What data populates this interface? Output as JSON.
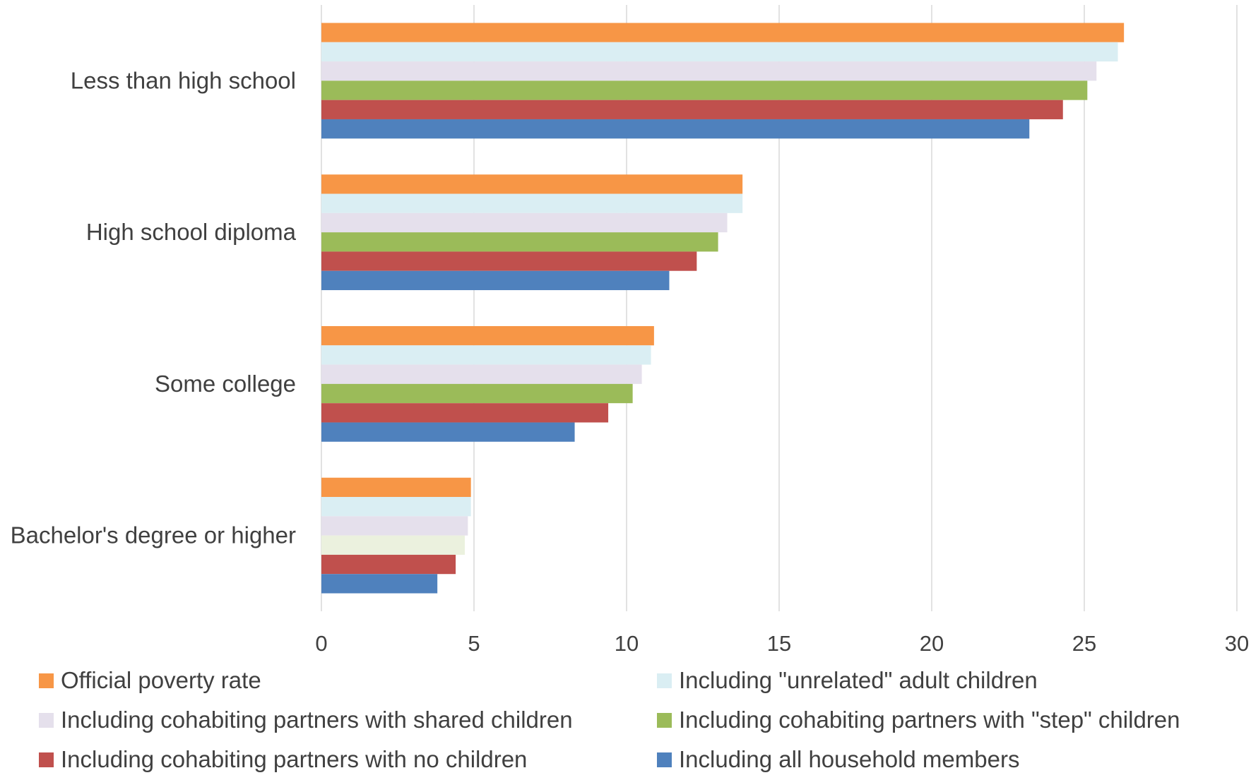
{
  "chart_data": {
    "type": "bar",
    "orientation": "horizontal",
    "title": "",
    "xlabel": "",
    "ylabel": "",
    "xlim": [
      0,
      30
    ],
    "x_ticks": [
      "0",
      "5",
      "10",
      "15",
      "20",
      "25",
      "30"
    ],
    "grid": true,
    "legend_position": "bottom",
    "categories": [
      "Less than high school",
      "High school diploma",
      "Some college",
      "Bachelor's degree or higher"
    ],
    "series": [
      {
        "name": "Official poverty rate",
        "color": "#F79646",
        "values": [
          26.3,
          13.8,
          10.9,
          4.9
        ]
      },
      {
        "name": "Including \"unrelated\" adult children",
        "color": "#DAEEF3",
        "values": [
          26.1,
          13.8,
          10.8,
          4.9
        ]
      },
      {
        "name": "Including cohabiting partners with shared children",
        "color": "#E5E0EC",
        "values": [
          25.4,
          13.3,
          10.5,
          4.8
        ]
      },
      {
        "name": "Including cohabiting partners with \"step\" children",
        "color": "#9BBB59",
        "values": [
          25.1,
          13.0,
          10.2,
          4.7
        ]
      },
      {
        "name": "Including cohabiting partners with no children",
        "color": "#C0504D",
        "values": [
          24.3,
          12.3,
          9.4,
          4.4
        ]
      },
      {
        "name": "Including all household members",
        "color": "#4F81BD",
        "values": [
          23.2,
          11.4,
          8.3,
          3.8
        ]
      }
    ],
    "bar_color_overrides": [
      {
        "series": 3,
        "category": 3,
        "color": "#EBF1DE"
      }
    ]
  }
}
